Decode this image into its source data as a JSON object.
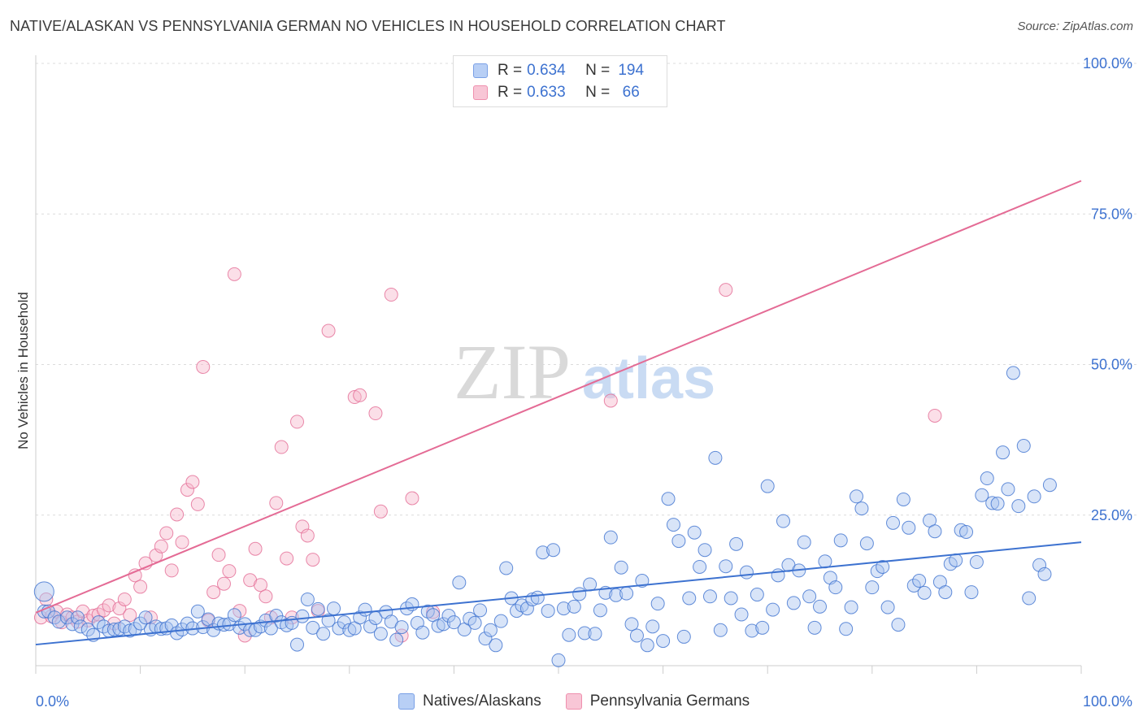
{
  "title": "NATIVE/ALASKAN VS PENNSYLVANIA GERMAN NO VEHICLES IN HOUSEHOLD CORRELATION CHART",
  "source": "Source: ZipAtlas.com",
  "watermark": {
    "zip": "ZIP",
    "atlas": "atlas"
  },
  "legend_top": {
    "rows": [
      {
        "r_label": "R = ",
        "r_value": "0.634",
        "n_label": "N = ",
        "n_value": "194"
      },
      {
        "r_label": "R = ",
        "r_value": "0.633",
        "n_label": "N = ",
        "n_value": "66"
      }
    ]
  },
  "legend_bottom": {
    "series_a": "Natives/Alaskans",
    "series_b": "Pennsylvania Germans"
  },
  "chart_data": {
    "type": "scatter",
    "title": "NATIVE/ALASKAN VS PENNSYLVANIA GERMAN NO VEHICLES IN HOUSEHOLD CORRELATION CHART",
    "xlabel": "",
    "ylabel": "No Vehicles in Household",
    "xlim": [
      0,
      100
    ],
    "ylim": [
      0,
      100
    ],
    "x_tick_labels": [
      "0.0%",
      "100.0%"
    ],
    "y_tick_labels": [
      "25.0%",
      "50.0%",
      "75.0%",
      "100.0%"
    ],
    "y_ticks": [
      25,
      50,
      75,
      100
    ],
    "colors": {
      "series_a": "#3d72d0",
      "series_b": "#e46b95",
      "fill_a": "#a9c4f0",
      "fill_b": "#f6b9cd"
    },
    "series": [
      {
        "name": "Natives/Alaskans",
        "R": 0.634,
        "N": 194,
        "trend": {
          "x": [
            0,
            100
          ],
          "y": [
            3.5,
            20.5
          ]
        },
        "points": [
          [
            0.8,
            12.3
          ],
          [
            0.8,
            9.0
          ],
          [
            1.2,
            9.0
          ],
          [
            1.8,
            8.0
          ],
          [
            2.2,
            7.3
          ],
          [
            3.0,
            8.0
          ],
          [
            3.5,
            6.9
          ],
          [
            4.0,
            8.0
          ],
          [
            4.3,
            6.5
          ],
          [
            5.0,
            6.0
          ],
          [
            5.5,
            5.1
          ],
          [
            6.0,
            7.2
          ],
          [
            6.5,
            6.5
          ],
          [
            7.0,
            5.8
          ],
          [
            7.5,
            6.0
          ],
          [
            8.0,
            6.1
          ],
          [
            8.5,
            6.5
          ],
          [
            9.0,
            5.8
          ],
          [
            9.5,
            6.1
          ],
          [
            10.0,
            7.0
          ],
          [
            10.5,
            8.0
          ],
          [
            11.0,
            6.0
          ],
          [
            11.5,
            6.5
          ],
          [
            12.0,
            6.1
          ],
          [
            12.5,
            6.2
          ],
          [
            13.0,
            6.7
          ],
          [
            13.5,
            5.4
          ],
          [
            14.0,
            6.0
          ],
          [
            14.5,
            7.0
          ],
          [
            15.0,
            6.2
          ],
          [
            15.5,
            9.0
          ],
          [
            16.0,
            6.4
          ],
          [
            16.5,
            7.7
          ],
          [
            17.0,
            5.9
          ],
          [
            17.5,
            7.0
          ],
          [
            18.0,
            6.8
          ],
          [
            18.5,
            6.9
          ],
          [
            19.0,
            8.4
          ],
          [
            19.5,
            6.3
          ],
          [
            20.0,
            6.9
          ],
          [
            20.5,
            5.9
          ],
          [
            21.0,
            5.9
          ],
          [
            21.5,
            6.5
          ],
          [
            22.0,
            7.5
          ],
          [
            22.5,
            6.2
          ],
          [
            23.0,
            8.3
          ],
          [
            23.5,
            7.2
          ],
          [
            24.0,
            6.7
          ],
          [
            24.5,
            7.1
          ],
          [
            25.0,
            3.5
          ],
          [
            25.5,
            8.2
          ],
          [
            26.0,
            11.0
          ],
          [
            26.5,
            6.3
          ],
          [
            27.0,
            9.4
          ],
          [
            27.5,
            5.3
          ],
          [
            28.0,
            7.5
          ],
          [
            28.5,
            9.5
          ],
          [
            29.0,
            6.2
          ],
          [
            29.5,
            7.2
          ],
          [
            30.0,
            5.9
          ],
          [
            30.5,
            6.2
          ],
          [
            31.0,
            8.0
          ],
          [
            31.5,
            9.3
          ],
          [
            32.0,
            6.5
          ],
          [
            32.5,
            7.9
          ],
          [
            33.0,
            5.3
          ],
          [
            33.5,
            8.9
          ],
          [
            34.0,
            7.3
          ],
          [
            34.5,
            4.3
          ],
          [
            35.0,
            6.4
          ],
          [
            35.5,
            9.5
          ],
          [
            36.0,
            10.2
          ],
          [
            36.5,
            7.1
          ],
          [
            37.0,
            5.5
          ],
          [
            37.5,
            9.0
          ],
          [
            38.0,
            8.4
          ],
          [
            38.5,
            6.6
          ],
          [
            39.0,
            6.9
          ],
          [
            39.5,
            8.3
          ],
          [
            40.0,
            7.2
          ],
          [
            40.5,
            13.8
          ],
          [
            41.0,
            6.0
          ],
          [
            41.5,
            7.8
          ],
          [
            42.0,
            7.1
          ],
          [
            42.5,
            9.2
          ],
          [
            43.0,
            4.5
          ],
          [
            43.5,
            5.9
          ],
          [
            44.0,
            3.4
          ],
          [
            44.5,
            7.4
          ],
          [
            45.0,
            16.2
          ],
          [
            45.5,
            11.2
          ],
          [
            46.0,
            9.1
          ],
          [
            46.5,
            10.0
          ],
          [
            47.0,
            9.5
          ],
          [
            47.5,
            11.0
          ],
          [
            48.0,
            11.3
          ],
          [
            48.5,
            18.8
          ],
          [
            49.0,
            9.1
          ],
          [
            49.5,
            19.2
          ],
          [
            50.0,
            0.9
          ],
          [
            50.5,
            9.5
          ],
          [
            51.0,
            5.1
          ],
          [
            51.5,
            9.8
          ],
          [
            52.0,
            11.9
          ],
          [
            52.5,
            5.4
          ],
          [
            53.0,
            13.5
          ],
          [
            53.5,
            5.3
          ],
          [
            54.0,
            9.2
          ],
          [
            54.5,
            12.1
          ],
          [
            55.0,
            21.3
          ],
          [
            55.5,
            11.7
          ],
          [
            56.0,
            16.3
          ],
          [
            56.5,
            12.0
          ],
          [
            57.0,
            6.9
          ],
          [
            57.5,
            5.0
          ],
          [
            58.0,
            14.1
          ],
          [
            58.5,
            3.4
          ],
          [
            59.0,
            6.5
          ],
          [
            59.5,
            10.3
          ],
          [
            60.0,
            4.1
          ],
          [
            60.5,
            27.7
          ],
          [
            61.0,
            23.4
          ],
          [
            61.5,
            20.7
          ],
          [
            62.0,
            4.8
          ],
          [
            62.5,
            11.2
          ],
          [
            63.0,
            22.1
          ],
          [
            63.5,
            16.4
          ],
          [
            64.0,
            19.2
          ],
          [
            64.5,
            11.5
          ],
          [
            65.0,
            34.5
          ],
          [
            65.5,
            5.9
          ],
          [
            66.0,
            16.5
          ],
          [
            66.5,
            11.2
          ],
          [
            67.0,
            20.2
          ],
          [
            67.5,
            8.5
          ],
          [
            68.0,
            15.5
          ],
          [
            68.5,
            5.8
          ],
          [
            69.0,
            11.8
          ],
          [
            69.5,
            6.3
          ],
          [
            70.0,
            29.8
          ],
          [
            70.5,
            9.3
          ],
          [
            71.0,
            15.0
          ],
          [
            71.5,
            24.0
          ],
          [
            72.0,
            16.7
          ],
          [
            72.5,
            10.4
          ],
          [
            73.0,
            15.8
          ],
          [
            73.5,
            20.5
          ],
          [
            74.0,
            11.5
          ],
          [
            74.5,
            6.3
          ],
          [
            75.0,
            9.8
          ],
          [
            75.5,
            17.3
          ],
          [
            76.0,
            14.6
          ],
          [
            76.5,
            13.0
          ],
          [
            77.0,
            20.8
          ],
          [
            77.5,
            6.1
          ],
          [
            78.0,
            9.7
          ],
          [
            78.5,
            28.1
          ],
          [
            79.0,
            26.1
          ],
          [
            79.5,
            20.3
          ],
          [
            80.0,
            13.0
          ],
          [
            80.5,
            15.7
          ],
          [
            81.0,
            16.4
          ],
          [
            81.5,
            9.7
          ],
          [
            82.0,
            23.7
          ],
          [
            82.5,
            6.8
          ],
          [
            83.0,
            27.6
          ],
          [
            83.5,
            22.9
          ],
          [
            84.0,
            13.3
          ],
          [
            84.5,
            14.1
          ],
          [
            85.0,
            12.1
          ],
          [
            85.5,
            24.1
          ],
          [
            86.0,
            22.3
          ],
          [
            86.5,
            13.9
          ],
          [
            87.0,
            12.2
          ],
          [
            87.5,
            16.9
          ],
          [
            88.0,
            17.5
          ],
          [
            88.5,
            22.5
          ],
          [
            89.0,
            22.2
          ],
          [
            89.5,
            12.2
          ],
          [
            90.0,
            17.2
          ],
          [
            90.5,
            28.3
          ],
          [
            91.0,
            31.1
          ],
          [
            91.5,
            27.0
          ],
          [
            92.0,
            26.9
          ],
          [
            92.5,
            35.4
          ],
          [
            93.0,
            29.3
          ],
          [
            93.5,
            48.6
          ],
          [
            94.0,
            26.5
          ],
          [
            94.5,
            36.5
          ],
          [
            95.0,
            11.2
          ],
          [
            95.5,
            28.1
          ],
          [
            96.0,
            16.7
          ],
          [
            96.5,
            15.2
          ],
          [
            97.0,
            30.0
          ]
        ]
      },
      {
        "name": "Pennsylvania Germans",
        "R": 0.633,
        "N": 66,
        "trend": {
          "x": [
            0,
            100
          ],
          "y": [
            8.8,
            80.5
          ]
        },
        "points": [
          [
            0.5,
            8.0
          ],
          [
            1.0,
            11.0
          ],
          [
            1.5,
            8.2
          ],
          [
            2.0,
            9.0
          ],
          [
            2.5,
            7.2
          ],
          [
            3.0,
            8.5
          ],
          [
            3.5,
            8.0
          ],
          [
            4.0,
            7.3
          ],
          [
            4.5,
            9.0
          ],
          [
            5.0,
            7.5
          ],
          [
            5.5,
            8.3
          ],
          [
            6.0,
            8.5
          ],
          [
            6.5,
            9.2
          ],
          [
            7.0,
            10.0
          ],
          [
            7.5,
            7.0
          ],
          [
            8.0,
            9.5
          ],
          [
            8.5,
            11.0
          ],
          [
            9.0,
            8.4
          ],
          [
            9.5,
            15.0
          ],
          [
            10.0,
            13.1
          ],
          [
            10.5,
            17.0
          ],
          [
            11.0,
            8.0
          ],
          [
            11.5,
            18.3
          ],
          [
            12.0,
            19.8
          ],
          [
            12.5,
            22.0
          ],
          [
            13.0,
            15.8
          ],
          [
            13.5,
            25.1
          ],
          [
            14.0,
            20.5
          ],
          [
            14.5,
            29.2
          ],
          [
            15.0,
            30.5
          ],
          [
            15.5,
            26.8
          ],
          [
            16.0,
            49.6
          ],
          [
            16.5,
            7.5
          ],
          [
            17.0,
            12.2
          ],
          [
            17.5,
            18.4
          ],
          [
            18.0,
            13.6
          ],
          [
            18.5,
            15.7
          ],
          [
            19.0,
            65.0
          ],
          [
            19.5,
            9.1
          ],
          [
            20.0,
            5.0
          ],
          [
            20.5,
            14.2
          ],
          [
            21.0,
            19.4
          ],
          [
            21.5,
            13.4
          ],
          [
            22.0,
            11.5
          ],
          [
            22.5,
            8.0
          ],
          [
            23.0,
            27.0
          ],
          [
            23.5,
            36.3
          ],
          [
            24.0,
            17.8
          ],
          [
            24.5,
            8.0
          ],
          [
            25.0,
            40.5
          ],
          [
            25.5,
            23.1
          ],
          [
            26.0,
            21.6
          ],
          [
            26.5,
            17.6
          ],
          [
            27.0,
            9.1
          ],
          [
            28.0,
            55.6
          ],
          [
            30.5,
            44.6
          ],
          [
            31.0,
            44.9
          ],
          [
            32.5,
            41.9
          ],
          [
            33.0,
            25.6
          ],
          [
            34.0,
            61.6
          ],
          [
            35.0,
            5.0
          ],
          [
            36.0,
            27.8
          ],
          [
            38.0,
            8.9
          ],
          [
            55.0,
            44.0
          ],
          [
            66.0,
            62.4
          ],
          [
            86.0,
            41.5
          ]
        ]
      }
    ]
  }
}
